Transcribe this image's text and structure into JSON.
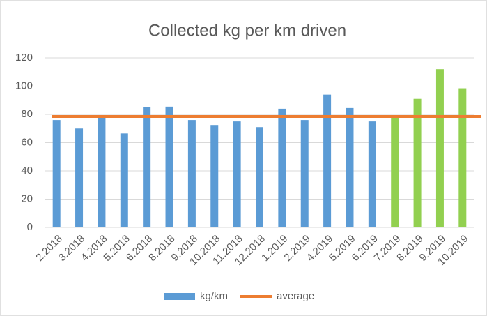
{
  "chart_data": {
    "type": "bar",
    "title": "Collected kg per km driven",
    "categories": [
      "2.2018",
      "3.2018",
      "4.2018",
      "5.2018",
      "6.2018",
      "8.2018",
      "9.2018",
      "10.2018",
      "11.2018",
      "12.2018",
      "1.2019",
      "2.2019",
      "4.2019",
      "5.2019",
      "6.2019",
      "7.2019",
      "8.2019",
      "9.2019",
      "10.2019"
    ],
    "series": [
      {
        "name": "kg/km",
        "color": "#5b9bd5",
        "values": [
          76,
          70,
          78,
          66.5,
          85,
          85.5,
          76,
          72.5,
          75,
          71,
          84,
          76,
          94,
          84.5,
          75,
          78,
          91,
          112,
          98.5
        ],
        "colors": [
          "#5b9bd5",
          "#5b9bd5",
          "#5b9bd5",
          "#5b9bd5",
          "#5b9bd5",
          "#5b9bd5",
          "#5b9bd5",
          "#5b9bd5",
          "#5b9bd5",
          "#5b9bd5",
          "#5b9bd5",
          "#5b9bd5",
          "#5b9bd5",
          "#5b9bd5",
          "#5b9bd5",
          "#92d050",
          "#92d050",
          "#92d050",
          "#92d050"
        ]
      },
      {
        "name": "average",
        "type": "line",
        "color": "#ed7d31",
        "value": 78.5
      }
    ],
    "ylim": [
      0,
      120
    ],
    "yticks": [
      0,
      20,
      40,
      60,
      80,
      100,
      120
    ],
    "grid": true,
    "legend": "bottom"
  }
}
